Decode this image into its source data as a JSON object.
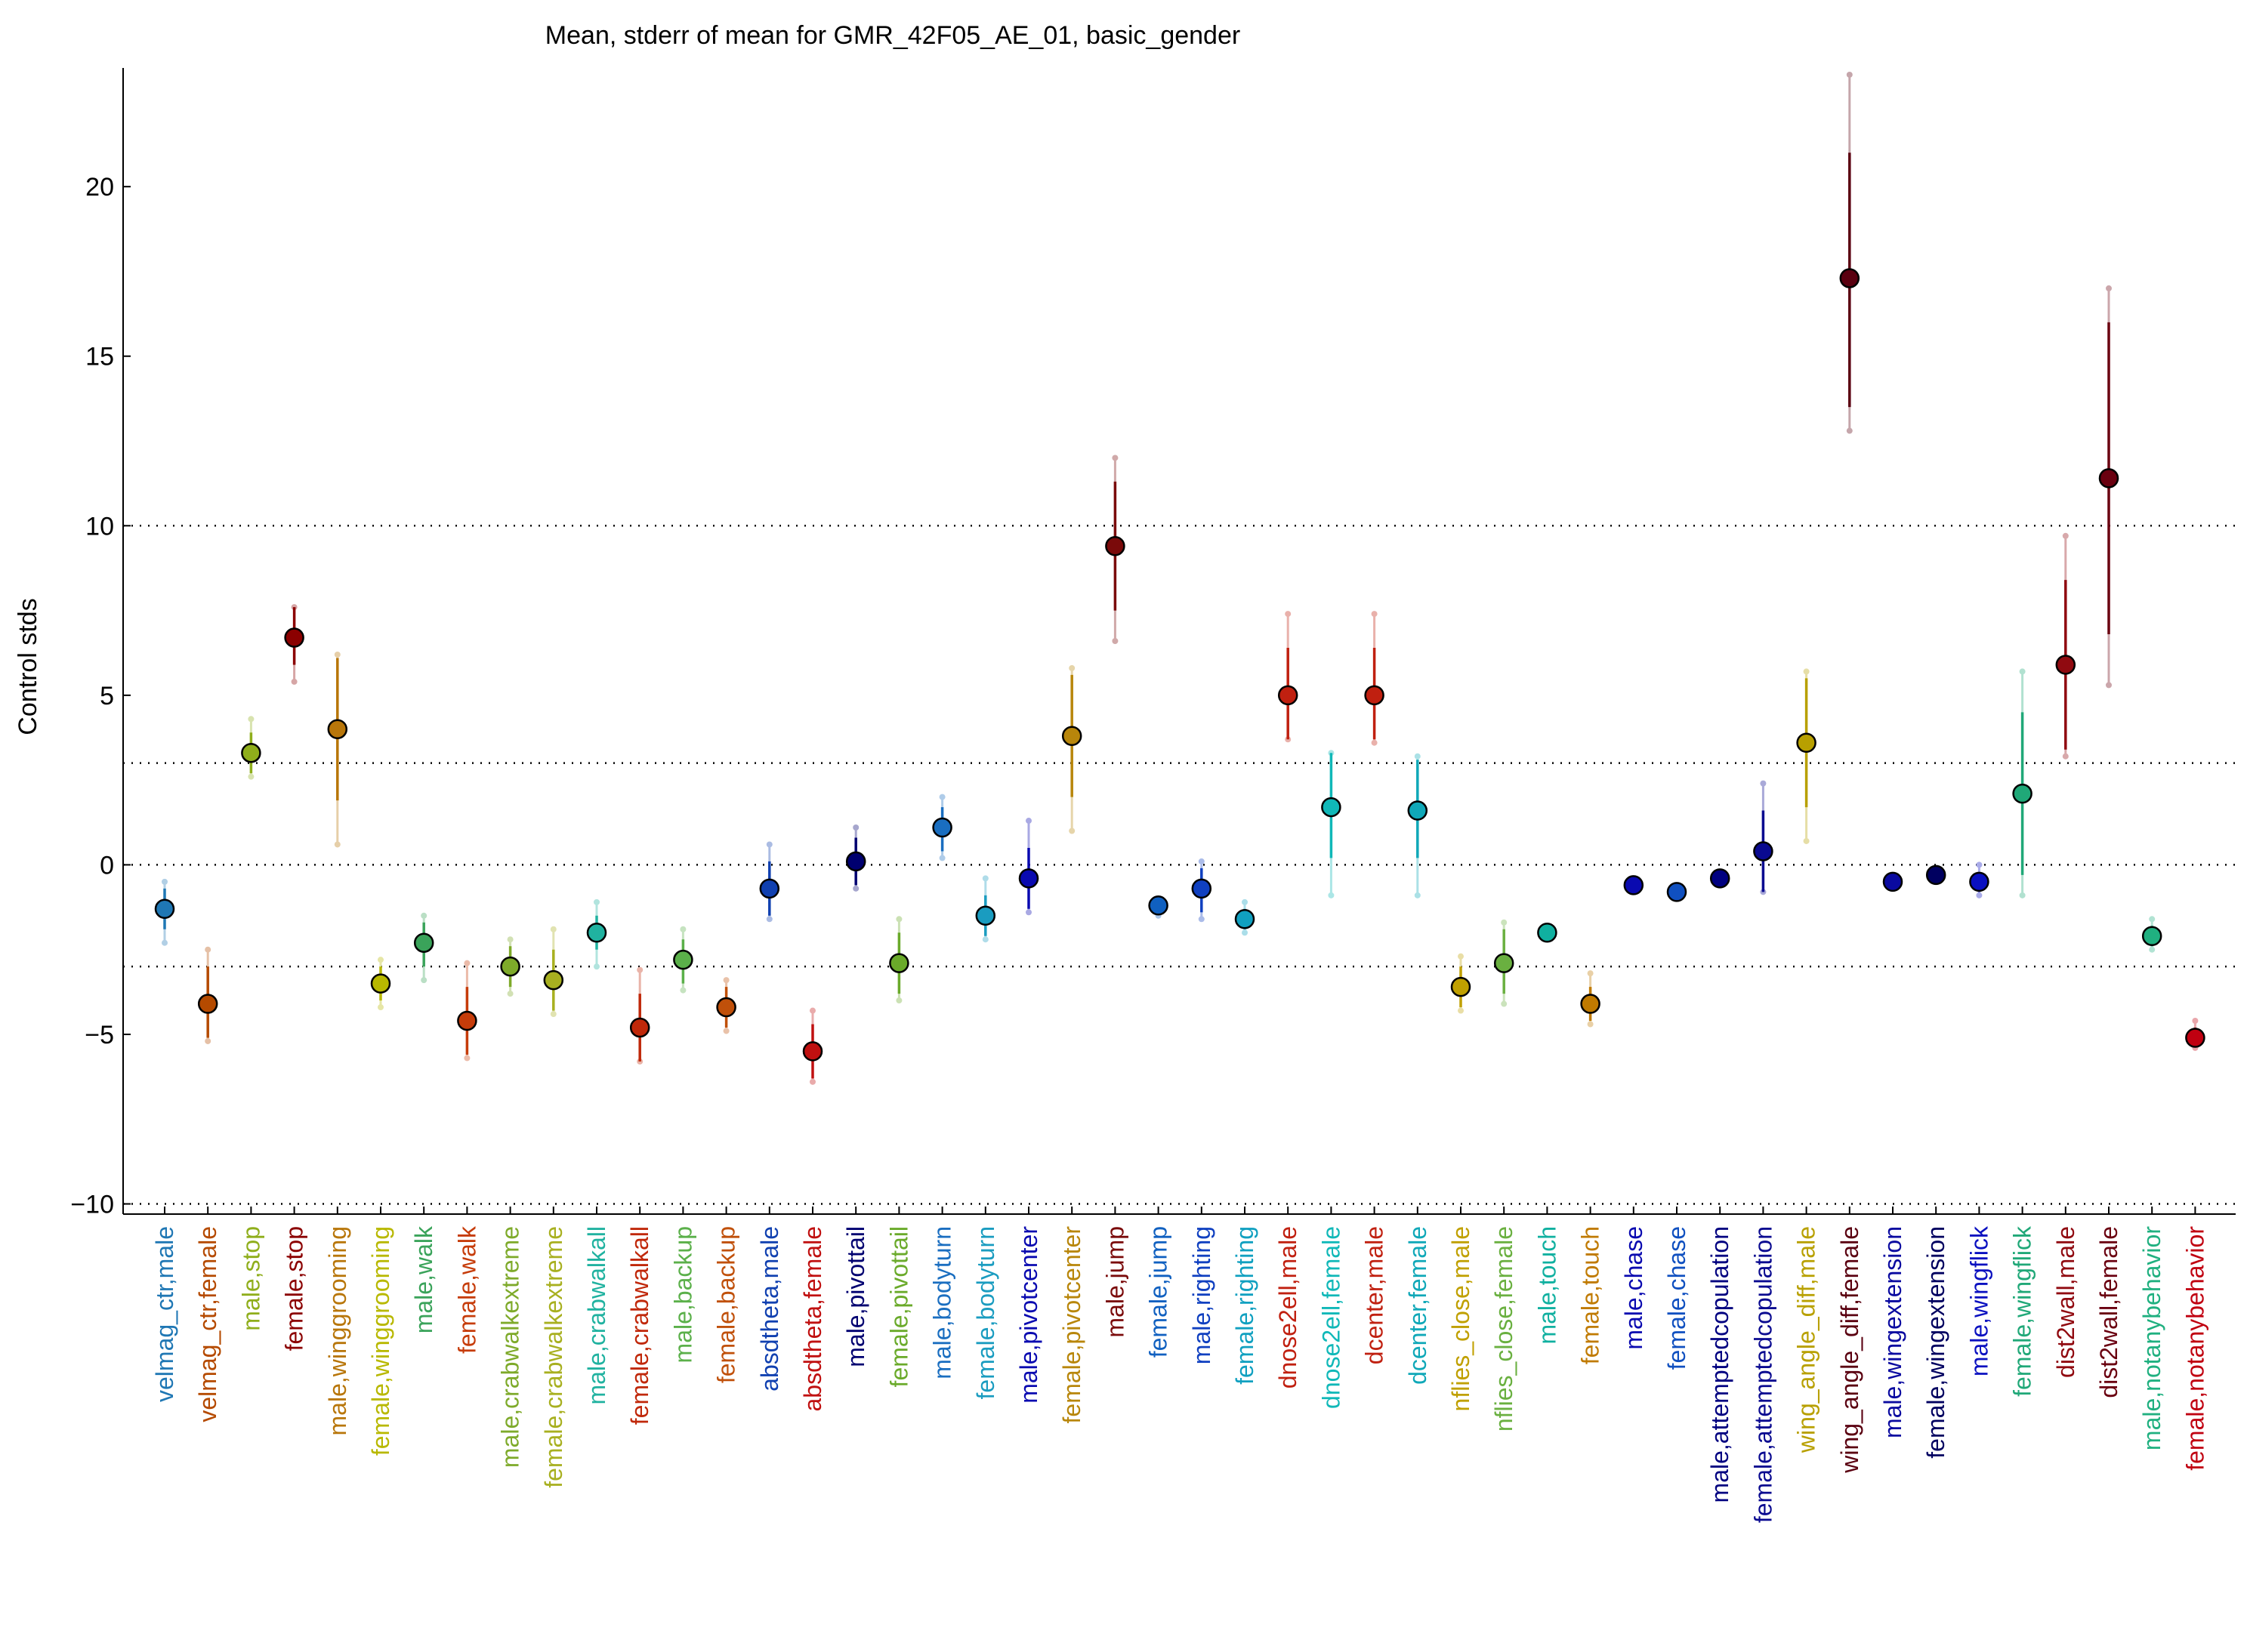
{
  "chart_data": {
    "type": "scatter",
    "title": "Mean, stderr of mean for GMR_42F05_AE_01, basic_gender",
    "xlabel": "",
    "ylabel": "Control stds",
    "ylim": [
      -10.3,
      23.5
    ],
    "yticks": [
      -10,
      -5,
      0,
      5,
      10,
      15,
      20
    ],
    "reference_lines": [
      -10,
      -3,
      0,
      3,
      10
    ],
    "grid": false,
    "points": [
      {
        "label": "velmag_ctr,male",
        "mean": -1.3,
        "err_lo": -1.9,
        "err_hi": -0.7,
        "ext_lo": -2.3,
        "ext_hi": -0.5,
        "color": "#1f77b4"
      },
      {
        "label": "velmag_ctr,female",
        "mean": -4.1,
        "err_lo": -5.1,
        "err_hi": -3.0,
        "ext_lo": -5.2,
        "ext_hi": -2.5,
        "color": "#b54a00"
      },
      {
        "label": "male,stop",
        "mean": 3.3,
        "err_lo": 2.7,
        "err_hi": 3.9,
        "ext_lo": 2.6,
        "ext_hi": 4.3,
        "color": "#8fae1b"
      },
      {
        "label": "female,stop",
        "mean": 6.7,
        "err_lo": 5.9,
        "err_hi": 7.6,
        "ext_lo": 5.4,
        "ext_hi": 7.6,
        "color": "#8b0000"
      },
      {
        "label": "male,winggrooming",
        "mean": 4.0,
        "err_lo": 1.9,
        "err_hi": 6.1,
        "ext_lo": 0.6,
        "ext_hi": 6.2,
        "color": "#b8760a"
      },
      {
        "label": "female,winggrooming",
        "mean": -3.5,
        "err_lo": -4.0,
        "err_hi": -3.0,
        "ext_lo": -4.2,
        "ext_hi": -2.8,
        "color": "#b8b800"
      },
      {
        "label": "male,walk",
        "mean": -2.3,
        "err_lo": -3.0,
        "err_hi": -1.7,
        "ext_lo": -3.4,
        "ext_hi": -1.5,
        "color": "#3aa35a"
      },
      {
        "label": "female,walk",
        "mean": -4.6,
        "err_lo": -5.6,
        "err_hi": -3.6,
        "ext_lo": -5.7,
        "ext_hi": -2.9,
        "color": "#c63c0a"
      },
      {
        "label": "male,crabwalkextreme",
        "mean": -3.0,
        "err_lo": -3.6,
        "err_hi": -2.4,
        "ext_lo": -3.8,
        "ext_hi": -2.2,
        "color": "#7eaa2a"
      },
      {
        "label": "female,crabwalkextreme",
        "mean": -3.4,
        "err_lo": -4.3,
        "err_hi": -2.5,
        "ext_lo": -4.4,
        "ext_hi": -1.9,
        "color": "#a8b020"
      },
      {
        "label": "male,crabwalkall",
        "mean": -2.0,
        "err_lo": -2.5,
        "err_hi": -1.5,
        "ext_lo": -3.0,
        "ext_hi": -1.1,
        "color": "#20b2a0"
      },
      {
        "label": "female,crabwalkall",
        "mean": -4.8,
        "err_lo": -5.8,
        "err_hi": -3.8,
        "ext_lo": -5.8,
        "ext_hi": -3.1,
        "color": "#c0280a"
      },
      {
        "label": "male,backup",
        "mean": -2.8,
        "err_lo": -3.5,
        "err_hi": -2.2,
        "ext_lo": -3.7,
        "ext_hi": -1.9,
        "color": "#5bb04a"
      },
      {
        "label": "female,backup",
        "mean": -4.2,
        "err_lo": -4.8,
        "err_hi": -3.6,
        "ext_lo": -4.9,
        "ext_hi": -3.4,
        "color": "#c0500a"
      },
      {
        "label": "absdtheta,male",
        "mean": -0.7,
        "err_lo": -1.5,
        "err_hi": 0.1,
        "ext_lo": -1.6,
        "ext_hi": 0.6,
        "color": "#1040b0"
      },
      {
        "label": "absdtheta,female",
        "mean": -5.5,
        "err_lo": -6.3,
        "err_hi": -4.7,
        "ext_lo": -6.4,
        "ext_hi": -4.3,
        "color": "#c01010"
      },
      {
        "label": "male,pivottail",
        "mean": 0.1,
        "err_lo": -0.6,
        "err_hi": 0.8,
        "ext_lo": -0.7,
        "ext_hi": 1.1,
        "color": "#000070"
      },
      {
        "label": "female,pivottail",
        "mean": -2.9,
        "err_lo": -3.8,
        "err_hi": -2.0,
        "ext_lo": -4.0,
        "ext_hi": -1.6,
        "color": "#6aaa2a"
      },
      {
        "label": "male,bodyturn",
        "mean": 1.1,
        "err_lo": 0.4,
        "err_hi": 1.7,
        "ext_lo": 0.2,
        "ext_hi": 2.0,
        "color": "#1a6ec0"
      },
      {
        "label": "female,bodyturn",
        "mean": -1.5,
        "err_lo": -2.1,
        "err_hi": -0.9,
        "ext_lo": -2.2,
        "ext_hi": -0.4,
        "color": "#1a9cc0"
      },
      {
        "label": "male,pivotcenter",
        "mean": -0.4,
        "err_lo": -1.3,
        "err_hi": 0.5,
        "ext_lo": -1.4,
        "ext_hi": 1.3,
        "color": "#0a0ab0"
      },
      {
        "label": "female,pivotcenter",
        "mean": 3.8,
        "err_lo": 2.0,
        "err_hi": 5.6,
        "ext_lo": 1.0,
        "ext_hi": 5.8,
        "color": "#b8860b"
      },
      {
        "label": "male,jump",
        "mean": 9.4,
        "err_lo": 7.5,
        "err_hi": 11.3,
        "ext_lo": 6.6,
        "ext_hi": 12.0,
        "color": "#7a0a0a"
      },
      {
        "label": "female,jump",
        "mean": -1.2,
        "err_lo": -1.4,
        "err_hi": -1.0,
        "ext_lo": -1.5,
        "ext_hi": -1.0,
        "color": "#1060c0"
      },
      {
        "label": "male,righting",
        "mean": -0.7,
        "err_lo": -1.4,
        "err_hi": -0.1,
        "ext_lo": -1.6,
        "ext_hi": 0.1,
        "color": "#1040c0"
      },
      {
        "label": "female,righting",
        "mean": -1.6,
        "err_lo": -1.9,
        "err_hi": -1.3,
        "ext_lo": -2.0,
        "ext_hi": -1.1,
        "color": "#10a0c0"
      },
      {
        "label": "dnose2ell,male",
        "mean": 5.0,
        "err_lo": 3.7,
        "err_hi": 6.4,
        "ext_lo": 3.7,
        "ext_hi": 7.4,
        "color": "#c02010"
      },
      {
        "label": "dnose2ell,female",
        "mean": 1.7,
        "err_lo": 0.2,
        "err_hi": 3.3,
        "ext_lo": -0.9,
        "ext_hi": 3.3,
        "color": "#10b8b8"
      },
      {
        "label": "dcenter,male",
        "mean": 5.0,
        "err_lo": 3.7,
        "err_hi": 6.4,
        "ext_lo": 3.6,
        "ext_hi": 7.4,
        "color": "#c02010"
      },
      {
        "label": "dcenter,female",
        "mean": 1.6,
        "err_lo": 0.2,
        "err_hi": 3.1,
        "ext_lo": -0.9,
        "ext_hi": 3.2,
        "color": "#10a8b8"
      },
      {
        "label": "nflies_close,male",
        "mean": -3.6,
        "err_lo": -4.2,
        "err_hi": -3.0,
        "ext_lo": -4.3,
        "ext_hi": -2.7,
        "color": "#c0a000"
      },
      {
        "label": "nflies_close,female",
        "mean": -2.9,
        "err_lo": -3.8,
        "err_hi": -1.9,
        "ext_lo": -4.1,
        "ext_hi": -1.7,
        "color": "#6ab040"
      },
      {
        "label": "male,touch",
        "mean": -2.0,
        "err_lo": -2.1,
        "err_hi": -1.9,
        "ext_lo": -2.1,
        "ext_hi": -1.9,
        "color": "#10b0a0"
      },
      {
        "label": "female,touch",
        "mean": -4.1,
        "err_lo": -4.6,
        "err_hi": -3.6,
        "ext_lo": -4.7,
        "ext_hi": -3.2,
        "color": "#c07a00"
      },
      {
        "label": "male,chase",
        "mean": -0.6,
        "err_lo": -0.7,
        "err_hi": -0.5,
        "ext_lo": -0.7,
        "ext_hi": -0.5,
        "color": "#0a0ab0"
      },
      {
        "label": "female,chase",
        "mean": -0.8,
        "err_lo": -0.9,
        "err_hi": -0.7,
        "ext_lo": -0.9,
        "ext_hi": -0.6,
        "color": "#1050c0"
      },
      {
        "label": "male,attemptedcopulation",
        "mean": -0.4,
        "err_lo": -0.5,
        "err_hi": -0.2,
        "ext_lo": -0.5,
        "ext_hi": -0.2,
        "color": "#000080"
      },
      {
        "label": "female,attemptedcopulation",
        "mean": 0.4,
        "err_lo": -0.8,
        "err_hi": 1.6,
        "ext_lo": -0.8,
        "ext_hi": 2.4,
        "color": "#0a0a90"
      },
      {
        "label": "wing_angle_diff,male",
        "mean": 3.6,
        "err_lo": 1.7,
        "err_hi": 5.5,
        "ext_lo": 0.7,
        "ext_hi": 5.7,
        "color": "#b8a000"
      },
      {
        "label": "wing_angle_diff,female",
        "mean": 17.3,
        "err_lo": 13.5,
        "err_hi": 21.0,
        "ext_lo": 12.8,
        "ext_hi": 23.3,
        "color": "#5a0010"
      },
      {
        "label": "male,wingextension",
        "mean": -0.5,
        "err_lo": -0.6,
        "err_hi": -0.4,
        "ext_lo": -0.6,
        "ext_hi": -0.3,
        "color": "#0a0aa0"
      },
      {
        "label": "female,wingextension",
        "mean": -0.3,
        "err_lo": -0.4,
        "err_hi": -0.2,
        "ext_lo": -0.5,
        "ext_hi": -0.1,
        "color": "#000060"
      },
      {
        "label": "male,wingflick",
        "mean": -0.5,
        "err_lo": -0.8,
        "err_hi": -0.3,
        "ext_lo": -0.9,
        "ext_hi": 0.0,
        "color": "#0a10c0"
      },
      {
        "label": "female,wingflick",
        "mean": 2.1,
        "err_lo": -0.3,
        "err_hi": 4.5,
        "ext_lo": -0.9,
        "ext_hi": 5.7,
        "color": "#20a878"
      },
      {
        "label": "dist2wall,male",
        "mean": 5.9,
        "err_lo": 3.4,
        "err_hi": 8.4,
        "ext_lo": 3.2,
        "ext_hi": 9.7,
        "color": "#900a10"
      },
      {
        "label": "dist2wall,female",
        "mean": 11.4,
        "err_lo": 6.8,
        "err_hi": 16.0,
        "ext_lo": 5.3,
        "ext_hi": 17.0,
        "color": "#6a0010"
      },
      {
        "label": "male,notanybehavior",
        "mean": -2.1,
        "err_lo": -2.4,
        "err_hi": -1.8,
        "ext_lo": -2.5,
        "ext_hi": -1.6,
        "color": "#20b080"
      },
      {
        "label": "female,notanybehavior",
        "mean": -5.1,
        "err_lo": -5.3,
        "err_hi": -4.8,
        "ext_lo": -5.4,
        "ext_hi": -4.6,
        "color": "#c00010"
      }
    ]
  }
}
